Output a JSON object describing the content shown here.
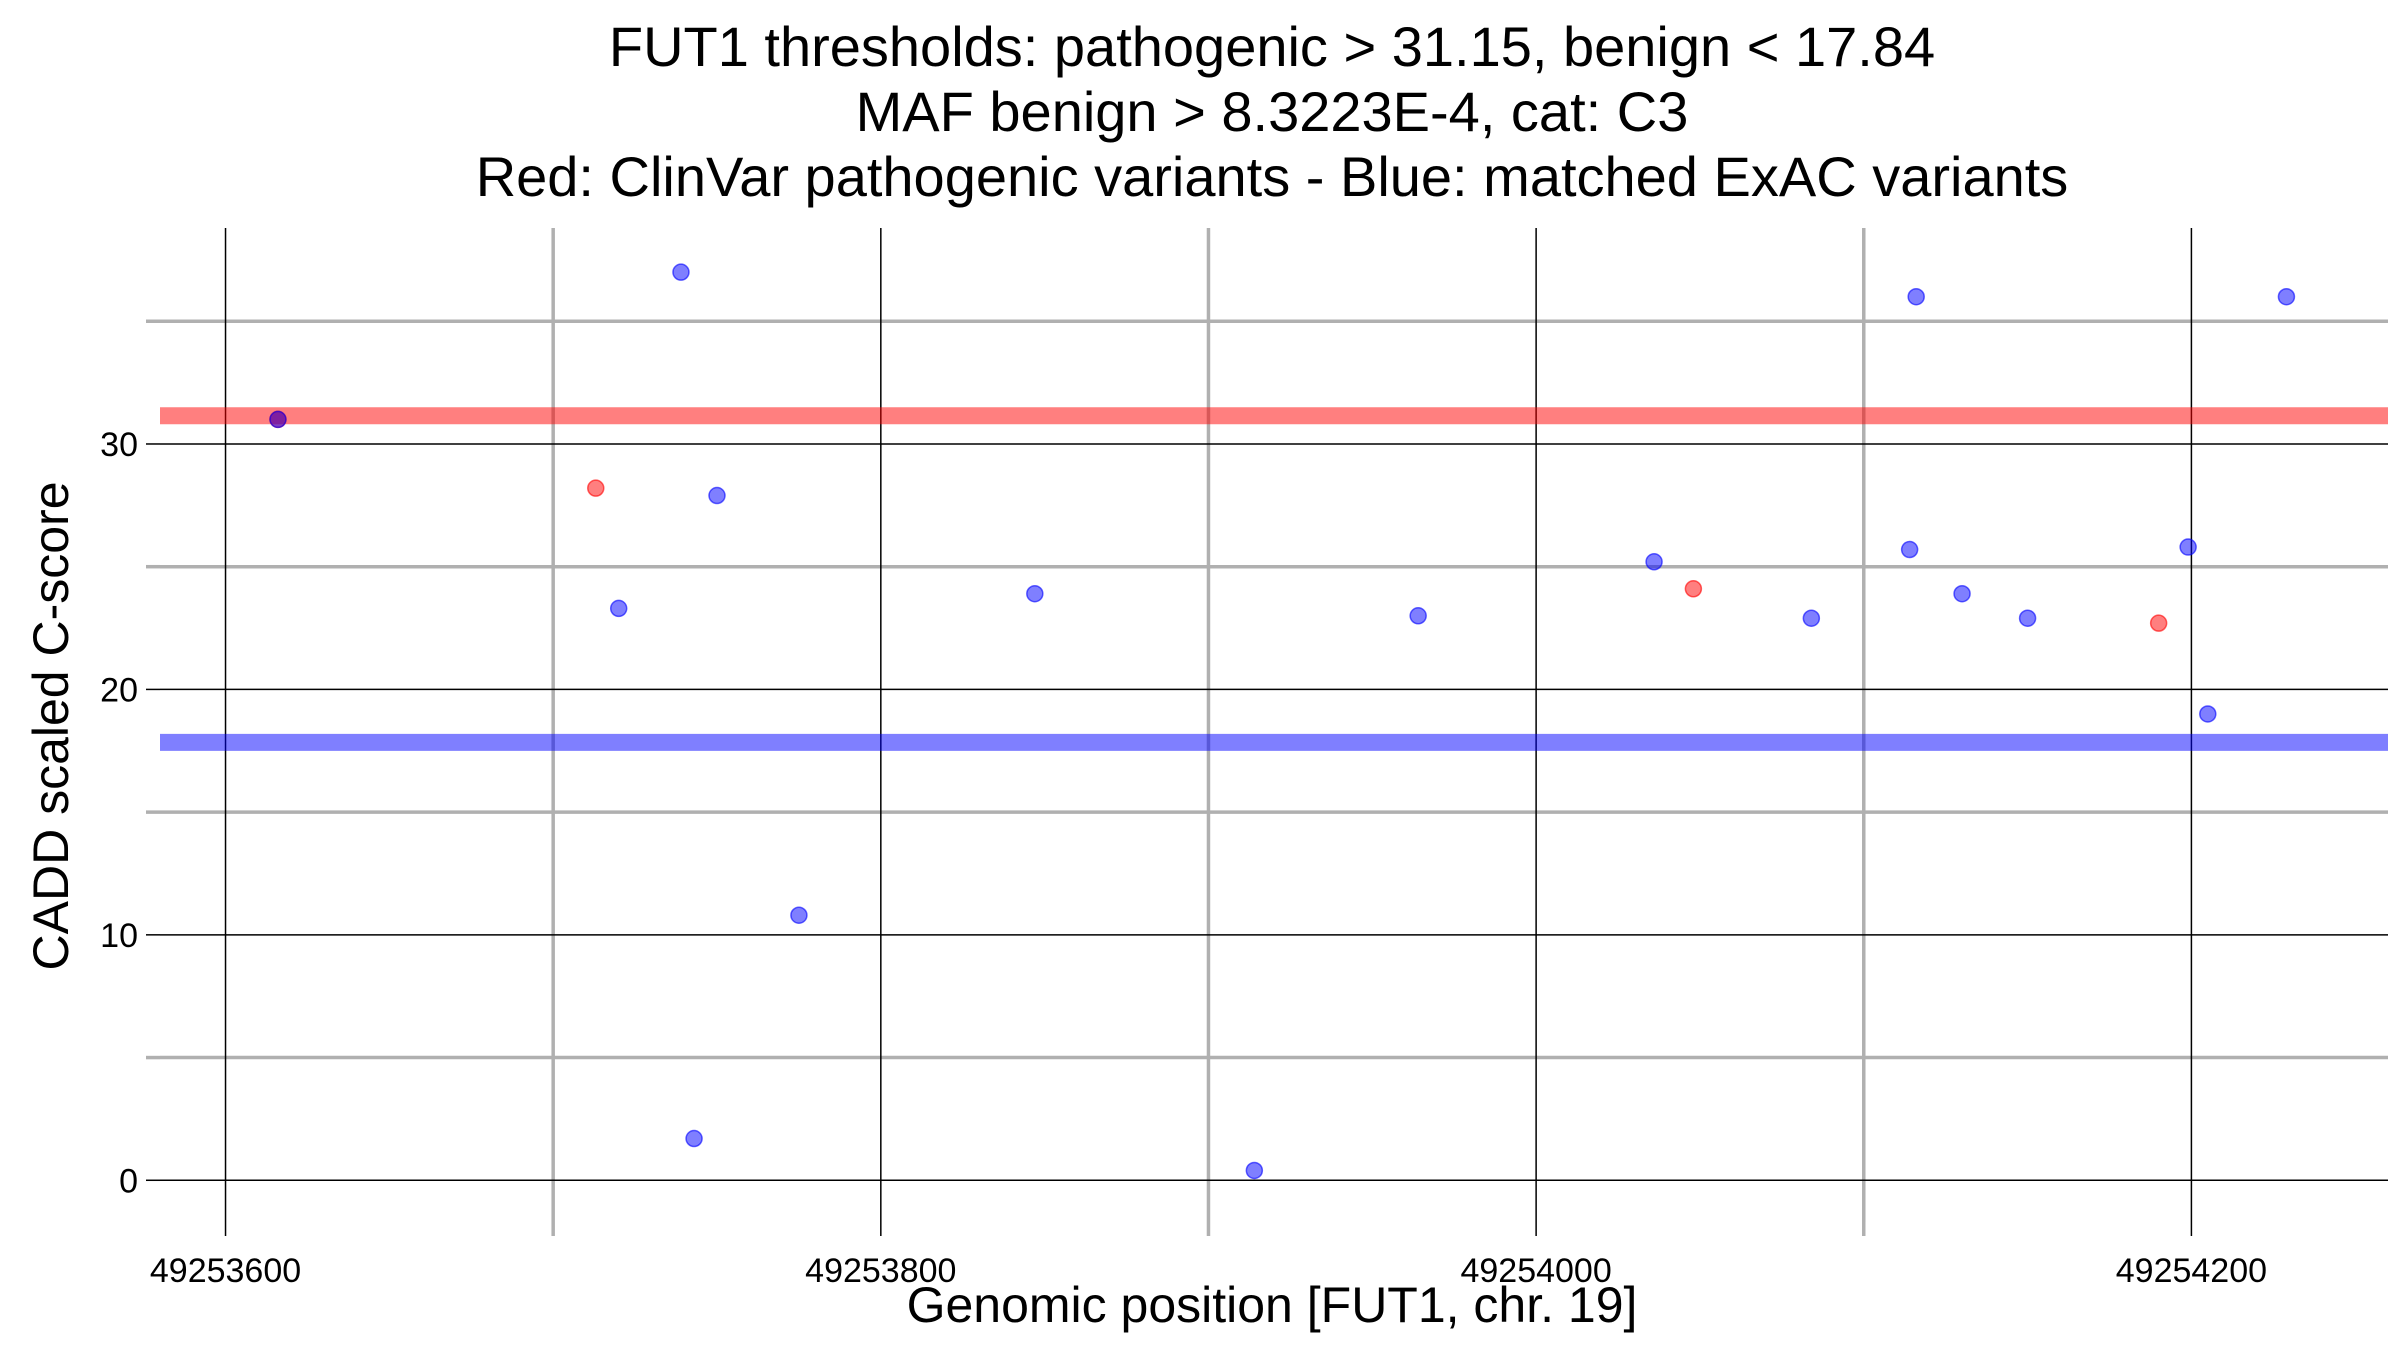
{
  "chart_data": {
    "type": "scatter",
    "title_lines": [
      "FUT1 thresholds: pathogenic > 31.15, benign < 17.84",
      "MAF benign > 8.3223E-4, cat: C3",
      "Red: ClinVar pathogenic variants - Blue: matched ExAC variants"
    ],
    "xlabel": "Genomic position [FUT1, chr. 19]",
    "ylabel": "CADD scaled C-score",
    "xlim": [
      49253580,
      49254260
    ],
    "ylim": [
      -1.7,
      38.8
    ],
    "x_major_ticks": [
      49253600,
      49253800,
      49254000,
      49254200
    ],
    "x_minor_ticks": [
      49253700,
      49253900,
      49254100
    ],
    "x_tick_labels": [
      "49253600",
      "49253800",
      "49254000",
      "49254200"
    ],
    "y_major_ticks": [
      0,
      10,
      20,
      30
    ],
    "y_minor_ticks": [
      5,
      15,
      25,
      35
    ],
    "y_tick_labels": [
      "0",
      "10",
      "20",
      "30"
    ],
    "thresholds": [
      {
        "name": "pathogenic",
        "value": 31.15,
        "color": "#ff0000"
      },
      {
        "name": "benign",
        "value": 17.84,
        "color": "#0000ff"
      }
    ],
    "series": [
      {
        "name": "ClinVar pathogenic variants",
        "color": "#ff0000",
        "points": [
          {
            "x": 49253616,
            "y": 31.0
          },
          {
            "x": 49253713,
            "y": 28.2
          },
          {
            "x": 49254048,
            "y": 24.1
          },
          {
            "x": 49254190,
            "y": 22.7
          }
        ]
      },
      {
        "name": "matched ExAC variants",
        "color": "#0000ff",
        "points": [
          {
            "x": 49253616,
            "y": 31.0
          },
          {
            "x": 49253720,
            "y": 23.3
          },
          {
            "x": 49253739,
            "y": 37.0
          },
          {
            "x": 49253743,
            "y": 1.7
          },
          {
            "x": 49253750,
            "y": 27.9
          },
          {
            "x": 49253775,
            "y": 10.8
          },
          {
            "x": 49253847,
            "y": 23.9
          },
          {
            "x": 49253914,
            "y": 0.4
          },
          {
            "x": 49253964,
            "y": 23.0
          },
          {
            "x": 49254036,
            "y": 25.2
          },
          {
            "x": 49254084,
            "y": 22.9
          },
          {
            "x": 49254114,
            "y": 25.7
          },
          {
            "x": 49254116,
            "y": 36.0
          },
          {
            "x": 49254130,
            "y": 23.9
          },
          {
            "x": 49254150,
            "y": 22.9
          },
          {
            "x": 49254199,
            "y": 25.8
          },
          {
            "x": 49254205,
            "y": 19.0
          },
          {
            "x": 49254229,
            "y": 36.0
          }
        ]
      }
    ]
  }
}
